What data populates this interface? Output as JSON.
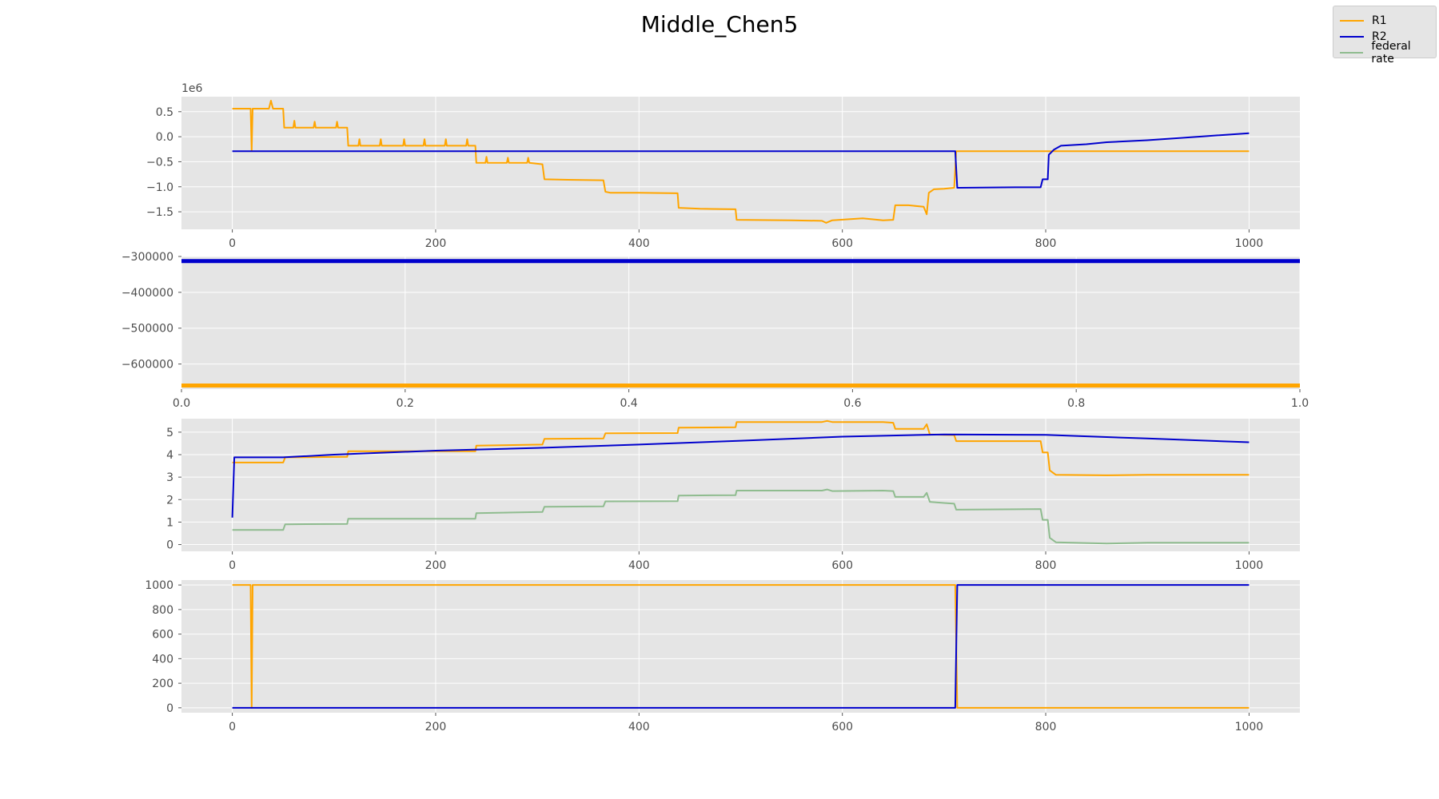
{
  "title": "Middle_Chen5",
  "legend": {
    "placement": "top-right",
    "items": [
      {
        "label": "R1",
        "color": "#ffa500"
      },
      {
        "label": "R2",
        "color": "#0000cd"
      },
      {
        "label": "federal rate",
        "color": "#8fbc8f"
      }
    ]
  },
  "chart_data": [
    {
      "type": "line",
      "title": "",
      "xlabel": "",
      "ylabel": "",
      "scale_label": "1e6",
      "xlim": [
        -50,
        1050
      ],
      "ylim": [
        -1.85,
        0.8
      ],
      "xticks": [
        0,
        200,
        400,
        600,
        800,
        1000
      ],
      "yticks": [
        0.5,
        0.0,
        -0.5,
        -1.0,
        -1.5
      ],
      "ytick_labels": [
        "0.5",
        "0.0",
        "−0.5",
        "−1.0",
        "−1.5"
      ],
      "grid": true,
      "series": [
        {
          "name": "R1",
          "color": "#ffa500",
          "points": [
            [
              0,
              0.56
            ],
            [
              18,
              0.56
            ],
            [
              19,
              -0.28
            ],
            [
              20,
              0.56
            ],
            [
              36,
              0.56
            ],
            [
              38,
              0.72
            ],
            [
              40,
              0.56
            ],
            [
              50,
              0.56
            ],
            [
              51,
              0.18
            ],
            [
              60,
              0.18
            ],
            [
              61,
              0.32
            ],
            [
              62,
              0.18
            ],
            [
              80,
              0.18
            ],
            [
              81,
              0.3
            ],
            [
              82,
              0.18
            ],
            [
              102,
              0.18
            ],
            [
              103,
              0.3
            ],
            [
              104,
              0.18
            ],
            [
              113,
              0.18
            ],
            [
              114,
              -0.18
            ],
            [
              124,
              -0.18
            ],
            [
              125,
              -0.05
            ],
            [
              126,
              -0.18
            ],
            [
              145,
              -0.18
            ],
            [
              146,
              -0.05
            ],
            [
              147,
              -0.18
            ],
            [
              168,
              -0.18
            ],
            [
              169,
              -0.05
            ],
            [
              170,
              -0.18
            ],
            [
              188,
              -0.18
            ],
            [
              189,
              -0.05
            ],
            [
              190,
              -0.18
            ],
            [
              209,
              -0.18
            ],
            [
              210,
              -0.05
            ],
            [
              211,
              -0.18
            ],
            [
              230,
              -0.18
            ],
            [
              231,
              -0.05
            ],
            [
              232,
              -0.18
            ],
            [
              239,
              -0.18
            ],
            [
              240,
              -0.52
            ],
            [
              249,
              -0.52
            ],
            [
              250,
              -0.4
            ],
            [
              251,
              -0.52
            ],
            [
              270,
              -0.52
            ],
            [
              271,
              -0.42
            ],
            [
              272,
              -0.52
            ],
            [
              290,
              -0.52
            ],
            [
              291,
              -0.42
            ],
            [
              292,
              -0.52
            ],
            [
              305,
              -0.55
            ],
            [
              307,
              -0.85
            ],
            [
              330,
              -0.86
            ],
            [
              365,
              -0.87
            ],
            [
              367,
              -1.1
            ],
            [
              372,
              -1.12
            ],
            [
              400,
              -1.12
            ],
            [
              438,
              -1.13
            ],
            [
              439,
              -1.42
            ],
            [
              460,
              -1.44
            ],
            [
              495,
              -1.45
            ],
            [
              496,
              -1.66
            ],
            [
              550,
              -1.67
            ],
            [
              580,
              -1.68
            ],
            [
              584,
              -1.72
            ],
            [
              590,
              -1.67
            ],
            [
              620,
              -1.63
            ],
            [
              640,
              -1.67
            ],
            [
              650,
              -1.66
            ],
            [
              652,
              -1.37
            ],
            [
              665,
              -1.37
            ],
            [
              680,
              -1.4
            ],
            [
              683,
              -1.55
            ],
            [
              685,
              -1.12
            ],
            [
              690,
              -1.05
            ],
            [
              700,
              -1.04
            ],
            [
              710,
              -1.02
            ],
            [
              712,
              -0.29
            ],
            [
              1000,
              -0.29
            ]
          ]
        },
        {
          "name": "R2",
          "color": "#0000cd",
          "points": [
            [
              0,
              -0.29
            ],
            [
              711,
              -0.29
            ],
            [
              713,
              -1.02
            ],
            [
              770,
              -1.01
            ],
            [
              795,
              -1.01
            ],
            [
              797,
              -0.85
            ],
            [
              802,
              -0.85
            ],
            [
              803,
              -0.36
            ],
            [
              808,
              -0.26
            ],
            [
              815,
              -0.18
            ],
            [
              840,
              -0.15
            ],
            [
              860,
              -0.11
            ],
            [
              900,
              -0.07
            ],
            [
              950,
              0.0
            ],
            [
              1000,
              0.07
            ]
          ]
        }
      ]
    },
    {
      "type": "line",
      "title": "",
      "xlabel": "",
      "ylabel": "",
      "xlim": [
        0.0,
        1.0
      ],
      "ylim": [
        -670000,
        -300000
      ],
      "xticks": [
        0.0,
        0.2,
        0.4,
        0.6,
        0.8,
        1.0
      ],
      "xtick_labels": [
        "0.0",
        "0.2",
        "0.4",
        "0.6",
        "0.8",
        "1.0"
      ],
      "yticks": [
        -300000,
        -400000,
        -500000,
        -600000
      ],
      "ytick_labels": [
        "−300000",
        "−400000",
        "−500000",
        "−600000"
      ],
      "grid": true,
      "series": [
        {
          "name": "R2",
          "color": "#0000cd",
          "points": [
            [
              0.0,
              -313000
            ],
            [
              1.0,
              -313000
            ]
          ]
        },
        {
          "name": "R1",
          "color": "#ffa500",
          "points": [
            [
              0.0,
              -660000
            ],
            [
              1.0,
              -660000
            ]
          ]
        }
      ]
    },
    {
      "type": "line",
      "title": "",
      "xlabel": "",
      "ylabel": "",
      "xlim": [
        -50,
        1050
      ],
      "ylim": [
        -0.3,
        5.6
      ],
      "xticks": [
        0,
        200,
        400,
        600,
        800,
        1000
      ],
      "yticks": [
        5,
        4,
        3,
        2,
        1,
        0
      ],
      "grid": true,
      "series": [
        {
          "name": "R1",
          "color": "#ffa500",
          "points": [
            [
              0,
              3.65
            ],
            [
              50,
              3.65
            ],
            [
              52,
              3.88
            ],
            [
              113,
              3.9
            ],
            [
              114,
              4.15
            ],
            [
              170,
              4.15
            ],
            [
              239,
              4.15
            ],
            [
              240,
              4.4
            ],
            [
              305,
              4.45
            ],
            [
              307,
              4.7
            ],
            [
              365,
              4.72
            ],
            [
              367,
              4.95
            ],
            [
              438,
              4.96
            ],
            [
              439,
              5.2
            ],
            [
              495,
              5.22
            ],
            [
              496,
              5.45
            ],
            [
              580,
              5.45
            ],
            [
              585,
              5.5
            ],
            [
              590,
              5.45
            ],
            [
              640,
              5.45
            ],
            [
              650,
              5.42
            ],
            [
              652,
              5.15
            ],
            [
              680,
              5.15
            ],
            [
              683,
              5.35
            ],
            [
              686,
              4.9
            ],
            [
              700,
              4.88
            ],
            [
              710,
              4.87
            ],
            [
              712,
              4.6
            ],
            [
              795,
              4.6
            ],
            [
              797,
              4.1
            ],
            [
              802,
              4.1
            ],
            [
              804,
              3.3
            ],
            [
              810,
              3.1
            ],
            [
              860,
              3.08
            ],
            [
              900,
              3.1
            ],
            [
              1000,
              3.1
            ]
          ]
        },
        {
          "name": "R2",
          "color": "#0000cd",
          "points": [
            [
              0,
              1.2
            ],
            [
              2,
              3.88
            ],
            [
              50,
              3.88
            ],
            [
              100,
              4.0
            ],
            [
              200,
              4.18
            ],
            [
              300,
              4.3
            ],
            [
              400,
              4.45
            ],
            [
              500,
              4.62
            ],
            [
              600,
              4.8
            ],
            [
              700,
              4.9
            ],
            [
              800,
              4.88
            ],
            [
              900,
              4.72
            ],
            [
              1000,
              4.55
            ]
          ]
        },
        {
          "name": "federal rate",
          "color": "#8fbc8f",
          "points": [
            [
              0,
              0.65
            ],
            [
              50,
              0.65
            ],
            [
              52,
              0.9
            ],
            [
              113,
              0.92
            ],
            [
              114,
              1.15
            ],
            [
              170,
              1.15
            ],
            [
              239,
              1.15
            ],
            [
              240,
              1.4
            ],
            [
              305,
              1.45
            ],
            [
              307,
              1.68
            ],
            [
              365,
              1.7
            ],
            [
              367,
              1.92
            ],
            [
              438,
              1.93
            ],
            [
              439,
              2.18
            ],
            [
              495,
              2.2
            ],
            [
              496,
              2.4
            ],
            [
              580,
              2.4
            ],
            [
              585,
              2.45
            ],
            [
              590,
              2.38
            ],
            [
              640,
              2.4
            ],
            [
              650,
              2.38
            ],
            [
              652,
              2.12
            ],
            [
              680,
              2.12
            ],
            [
              683,
              2.3
            ],
            [
              686,
              1.9
            ],
            [
              700,
              1.85
            ],
            [
              710,
              1.82
            ],
            [
              712,
              1.55
            ],
            [
              795,
              1.58
            ],
            [
              797,
              1.1
            ],
            [
              802,
              1.1
            ],
            [
              804,
              0.3
            ],
            [
              810,
              0.1
            ],
            [
              860,
              0.05
            ],
            [
              900,
              0.08
            ],
            [
              1000,
              0.08
            ]
          ]
        }
      ]
    },
    {
      "type": "line",
      "title": "",
      "xlabel": "",
      "ylabel": "",
      "xlim": [
        -50,
        1050
      ],
      "ylim": [
        -40,
        1040
      ],
      "xticks": [
        0,
        200,
        400,
        600,
        800,
        1000
      ],
      "yticks": [
        1000,
        800,
        600,
        400,
        200,
        0
      ],
      "grid": true,
      "series": [
        {
          "name": "R1",
          "color": "#ffa500",
          "points": [
            [
              0,
              1000
            ],
            [
              18,
              1000
            ],
            [
              19,
              0
            ],
            [
              20,
              1000
            ],
            [
              711,
              1000
            ],
            [
              713,
              0
            ],
            [
              1000,
              0
            ]
          ]
        },
        {
          "name": "R2",
          "color": "#0000cd",
          "points": [
            [
              0,
              0
            ],
            [
              711,
              0
            ],
            [
              713,
              1000
            ],
            [
              1000,
              1000
            ]
          ]
        }
      ]
    }
  ]
}
